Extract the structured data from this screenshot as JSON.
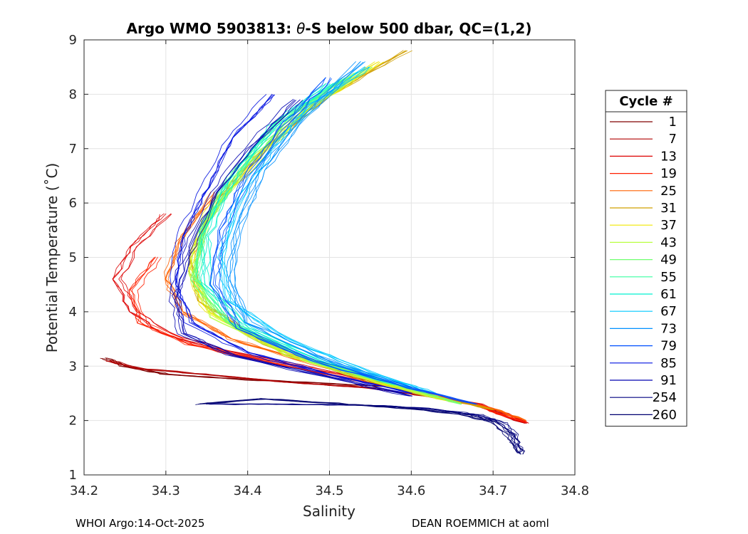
{
  "chart_data": {
    "type": "line",
    "title": "Argo WMO 5903813: θ-S below 500 dbar,  QC=(1,2)",
    "title_prefix": "Argo WMO 5903813: ",
    "title_theta": "θ",
    "title_suffix": "-S below 500 dbar,  QC=(1,2)",
    "xlabel": "Salinity",
    "ylabel": "Potential Temperature (˚C)",
    "xlim": [
      34.2,
      34.8
    ],
    "ylim": [
      1,
      9
    ],
    "xticks": [
      "34.2",
      "34.3",
      "34.4",
      "34.5",
      "34.6",
      "34.7",
      "34.8"
    ],
    "yticks": [
      "1",
      "2",
      "3",
      "4",
      "5",
      "6",
      "7",
      "8",
      "9"
    ],
    "grid": true,
    "legend": {
      "title": "Cycle #",
      "placement": "right-outside",
      "entries": [
        {
          "label": "1",
          "color": "#800000"
        },
        {
          "label": "7",
          "color": "#b00000"
        },
        {
          "label": "13",
          "color": "#dd0000"
        },
        {
          "label": "19",
          "color": "#ff2000"
        },
        {
          "label": "25",
          "color": "#ff6000"
        },
        {
          "label": "31",
          "color": "#d0a000"
        },
        {
          "label": "37",
          "color": "#f0e800"
        },
        {
          "label": "43",
          "color": "#b8ff40"
        },
        {
          "label": "49",
          "color": "#70ff70"
        },
        {
          "label": "55",
          "color": "#38ffa0"
        },
        {
          "label": "61",
          "color": "#00f0d0"
        },
        {
          "label": "67",
          "color": "#00c8ff"
        },
        {
          "label": "73",
          "color": "#0090ff"
        },
        {
          "label": "79",
          "color": "#0050ff"
        },
        {
          "label": "85",
          "color": "#0010e0"
        },
        {
          "label": "91",
          "color": "#0000b0"
        },
        {
          "label": "254",
          "color": "#000080"
        },
        {
          "label": "260",
          "color": "#000070"
        }
      ]
    },
    "series": [
      {
        "name": "1",
        "points": [
          [
            34.225,
            3.15
          ],
          [
            34.25,
            3.0
          ],
          [
            34.3,
            2.85
          ],
          [
            34.4,
            2.75
          ],
          [
            34.5,
            2.68
          ],
          [
            34.6,
            2.6
          ]
        ]
      },
      {
        "name": "7",
        "points": [
          [
            34.23,
            3.1
          ],
          [
            34.27,
            2.95
          ],
          [
            34.35,
            2.85
          ],
          [
            34.45,
            2.7
          ],
          [
            34.55,
            2.6
          ],
          [
            34.62,
            2.45
          ],
          [
            34.68,
            2.3
          ],
          [
            34.74,
            1.95
          ]
        ]
      },
      {
        "name": "13",
        "points": [
          [
            34.3,
            5.8
          ],
          [
            34.26,
            5.2
          ],
          [
            34.24,
            4.6
          ],
          [
            34.26,
            4.0
          ],
          [
            34.3,
            3.6
          ],
          [
            34.38,
            3.25
          ],
          [
            34.5,
            2.9
          ],
          [
            34.6,
            2.55
          ],
          [
            34.68,
            2.3
          ],
          [
            34.742,
            1.95
          ]
        ]
      },
      {
        "name": "19",
        "points": [
          [
            34.29,
            5.0
          ],
          [
            34.26,
            4.4
          ],
          [
            34.27,
            3.8
          ],
          [
            34.33,
            3.4
          ],
          [
            34.45,
            3.0
          ],
          [
            34.58,
            2.6
          ],
          [
            34.68,
            2.28
          ],
          [
            34.74,
            1.97
          ]
        ]
      },
      {
        "name": "25",
        "points": [
          [
            34.36,
            6.2
          ],
          [
            34.32,
            5.4
          ],
          [
            34.3,
            4.6
          ],
          [
            34.32,
            4.0
          ],
          [
            34.38,
            3.5
          ],
          [
            34.5,
            2.95
          ],
          [
            34.6,
            2.55
          ],
          [
            34.7,
            2.22
          ],
          [
            34.74,
            2.0
          ]
        ]
      },
      {
        "name": "31",
        "points": [
          [
            34.595,
            8.8
          ],
          [
            34.5,
            8.0
          ],
          [
            34.42,
            7.0
          ],
          [
            34.36,
            6.0
          ],
          [
            34.33,
            5.0
          ],
          [
            34.34,
            4.2
          ],
          [
            34.42,
            3.4
          ],
          [
            34.52,
            2.85
          ],
          [
            34.62,
            2.45
          ],
          [
            34.7,
            2.2
          ]
        ]
      },
      {
        "name": "37",
        "points": [
          [
            34.56,
            8.6
          ],
          [
            34.48,
            7.8
          ],
          [
            34.41,
            6.8
          ],
          [
            34.35,
            5.8
          ],
          [
            34.33,
            4.8
          ],
          [
            34.35,
            4.0
          ],
          [
            34.45,
            3.2
          ],
          [
            34.56,
            2.7
          ],
          [
            34.65,
            2.35
          ]
        ]
      },
      {
        "name": "43",
        "points": [
          [
            34.55,
            8.5
          ],
          [
            34.47,
            7.7
          ],
          [
            34.4,
            6.7
          ],
          [
            34.35,
            5.7
          ],
          [
            34.33,
            4.7
          ],
          [
            34.36,
            3.9
          ],
          [
            34.45,
            3.2
          ],
          [
            34.56,
            2.7
          ],
          [
            34.66,
            2.32
          ]
        ]
      },
      {
        "name": "49",
        "points": [
          [
            34.53,
            8.4
          ],
          [
            34.45,
            7.6
          ],
          [
            34.39,
            6.6
          ],
          [
            34.345,
            5.6
          ],
          [
            34.33,
            4.6
          ],
          [
            34.37,
            3.8
          ],
          [
            34.47,
            3.15
          ],
          [
            34.58,
            2.65
          ],
          [
            34.66,
            2.3
          ]
        ]
      },
      {
        "name": "55",
        "points": [
          [
            34.52,
            8.3
          ],
          [
            34.44,
            7.5
          ],
          [
            34.38,
            6.5
          ],
          [
            34.345,
            5.5
          ],
          [
            34.34,
            4.6
          ],
          [
            34.38,
            3.8
          ],
          [
            34.48,
            3.1
          ],
          [
            34.58,
            2.65
          ]
        ]
      },
      {
        "name": "61",
        "points": [
          [
            34.5,
            8.2
          ],
          [
            34.43,
            7.4
          ],
          [
            34.38,
            6.4
          ],
          [
            34.35,
            5.4
          ],
          [
            34.35,
            4.5
          ],
          [
            34.4,
            3.7
          ],
          [
            34.5,
            3.05
          ],
          [
            34.6,
            2.6
          ]
        ]
      },
      {
        "name": "67",
        "points": [
          [
            34.55,
            8.5
          ],
          [
            34.48,
            7.8
          ],
          [
            34.43,
            7.0
          ],
          [
            34.39,
            6.0
          ],
          [
            34.37,
            5.0
          ],
          [
            34.38,
            4.2
          ],
          [
            34.45,
            3.5
          ],
          [
            34.55,
            2.9
          ],
          [
            34.63,
            2.5
          ]
        ]
      },
      {
        "name": "73",
        "points": [
          [
            34.54,
            8.6
          ],
          [
            34.47,
            7.6
          ],
          [
            34.42,
            6.6
          ],
          [
            34.39,
            5.6
          ],
          [
            34.38,
            4.6
          ],
          [
            34.4,
            3.8
          ],
          [
            34.5,
            3.1
          ],
          [
            34.6,
            2.6
          ]
        ]
      },
      {
        "name": "79",
        "points": [
          [
            34.5,
            8.3
          ],
          [
            34.45,
            7.5
          ],
          [
            34.4,
            6.5
          ],
          [
            34.37,
            5.5
          ],
          [
            34.36,
            4.5
          ],
          [
            34.39,
            3.7
          ],
          [
            34.48,
            3.1
          ],
          [
            34.6,
            2.6
          ],
          [
            34.68,
            2.3
          ]
        ]
      },
      {
        "name": "85",
        "points": [
          [
            34.43,
            8.0
          ],
          [
            34.38,
            7.2
          ],
          [
            34.35,
            6.3
          ],
          [
            34.32,
            5.4
          ],
          [
            34.31,
            4.5
          ],
          [
            34.33,
            3.8
          ],
          [
            34.4,
            3.25
          ],
          [
            34.5,
            2.85
          ],
          [
            34.6,
            2.5
          ]
        ]
      },
      {
        "name": "91",
        "points": [
          [
            34.46,
            7.9
          ],
          [
            34.4,
            7.0
          ],
          [
            34.36,
            6.2
          ],
          [
            34.33,
            5.2
          ],
          [
            34.31,
            4.3
          ],
          [
            34.32,
            3.6
          ],
          [
            34.38,
            3.2
          ],
          [
            34.5,
            2.8
          ],
          [
            34.6,
            2.45
          ]
        ]
      },
      {
        "name": "254",
        "points": [
          [
            34.35,
            2.3
          ],
          [
            34.45,
            2.3
          ],
          [
            34.55,
            2.28
          ],
          [
            34.62,
            2.22
          ],
          [
            34.68,
            2.1
          ],
          [
            34.71,
            1.95
          ],
          [
            34.725,
            1.7
          ],
          [
            34.73,
            1.4
          ]
        ]
      },
      {
        "name": "260",
        "points": [
          [
            34.34,
            2.3
          ],
          [
            34.42,
            2.4
          ],
          [
            34.52,
            2.3
          ],
          [
            34.6,
            2.22
          ],
          [
            34.66,
            2.12
          ],
          [
            34.7,
            1.98
          ],
          [
            34.72,
            1.72
          ],
          [
            34.735,
            1.38
          ]
        ]
      }
    ]
  },
  "footer": {
    "left": "WHOI Argo:14-Oct-2025",
    "right": "DEAN ROEMMICH at aoml"
  }
}
